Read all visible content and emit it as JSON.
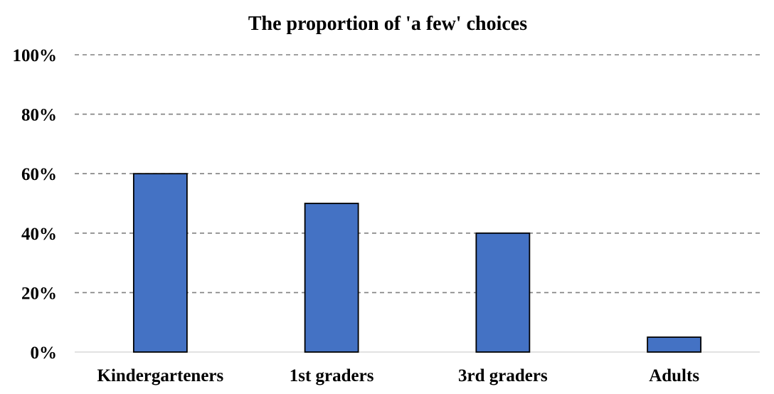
{
  "chart_data": {
    "type": "bar",
    "title": "The proportion of 'a few' choices",
    "xlabel": "",
    "ylabel": "",
    "categories": [
      "Kindergarteners",
      "1st graders",
      "3rd graders",
      "Adults"
    ],
    "values": [
      60,
      50,
      40,
      5
    ],
    "ylim": [
      0,
      100
    ],
    "yticks": [
      0,
      20,
      40,
      60,
      80,
      100
    ],
    "ytick_labels": [
      "0%",
      "20%",
      "40%",
      "60%",
      "80%",
      "100%"
    ],
    "grid": true,
    "grid_style": "dashed",
    "legend": "none",
    "bar_color": "#4472c4",
    "bar_edge_color": "#000000"
  }
}
